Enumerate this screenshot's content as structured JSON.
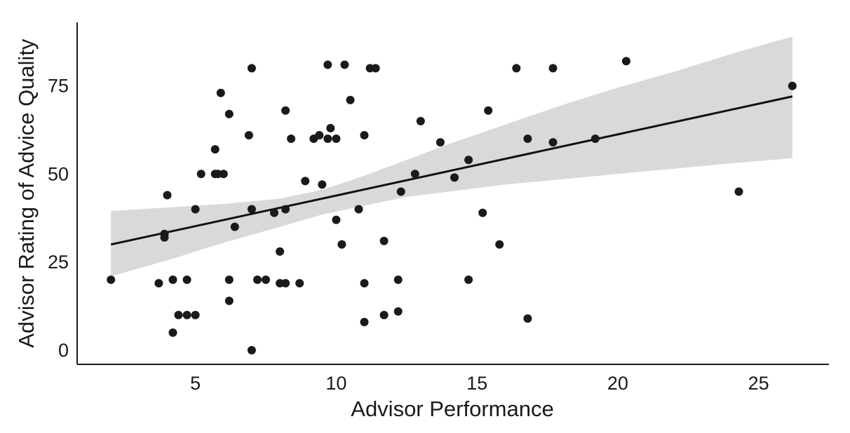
{
  "chart_data": {
    "type": "scatter",
    "title": "",
    "xlabel": "Advisor Performance",
    "ylabel": "Advisor Rating of Advice Quality",
    "xlim": [
      0.8,
      27.5
    ],
    "ylim": [
      -4,
      93
    ],
    "x_ticks": [
      5,
      10,
      15,
      20,
      25
    ],
    "y_ticks": [
      0,
      25,
      50,
      75
    ],
    "grid": false,
    "legend": "none",
    "colors": {
      "points": "#1a1a1a",
      "line": "#111111",
      "band": "#d9d9d9",
      "axis": "#1a1a1a"
    },
    "series": [
      {
        "points": [
          [
            2.0,
            20
          ],
          [
            3.7,
            19
          ],
          [
            3.9,
            33
          ],
          [
            3.9,
            32
          ],
          [
            4.0,
            44
          ],
          [
            4.2,
            20
          ],
          [
            4.2,
            5
          ],
          [
            4.4,
            10
          ],
          [
            4.7,
            10
          ],
          [
            4.7,
            20
          ],
          [
            5.0,
            10
          ],
          [
            5.0,
            40
          ],
          [
            5.2,
            50
          ],
          [
            5.7,
            57
          ],
          [
            5.7,
            50
          ],
          [
            5.8,
            50
          ],
          [
            5.9,
            73
          ],
          [
            6.0,
            50
          ],
          [
            6.2,
            67
          ],
          [
            6.2,
            20
          ],
          [
            6.2,
            14
          ],
          [
            6.4,
            35
          ],
          [
            6.9,
            61
          ],
          [
            7.0,
            80
          ],
          [
            7.0,
            40
          ],
          [
            7.0,
            0
          ],
          [
            7.2,
            20
          ],
          [
            7.5,
            20
          ],
          [
            7.8,
            39
          ],
          [
            8.0,
            28
          ],
          [
            8.0,
            19
          ],
          [
            8.2,
            19
          ],
          [
            8.2,
            68
          ],
          [
            8.2,
            40
          ],
          [
            8.4,
            60
          ],
          [
            8.7,
            19
          ],
          [
            8.9,
            48
          ],
          [
            9.2,
            60
          ],
          [
            9.4,
            61
          ],
          [
            9.5,
            47
          ],
          [
            9.7,
            81
          ],
          [
            9.7,
            60
          ],
          [
            9.8,
            63
          ],
          [
            10.0,
            60
          ],
          [
            10.0,
            37
          ],
          [
            10.2,
            30
          ],
          [
            10.3,
            81
          ],
          [
            10.5,
            71
          ],
          [
            10.8,
            40
          ],
          [
            11.0,
            61
          ],
          [
            11.0,
            19
          ],
          [
            11.0,
            8
          ],
          [
            11.2,
            80
          ],
          [
            11.4,
            80
          ],
          [
            11.7,
            31
          ],
          [
            11.7,
            10
          ],
          [
            12.2,
            11
          ],
          [
            12.2,
            20
          ],
          [
            12.3,
            45
          ],
          [
            12.8,
            50
          ],
          [
            13.0,
            65
          ],
          [
            13.7,
            59
          ],
          [
            14.2,
            49
          ],
          [
            14.7,
            54
          ],
          [
            14.7,
            20
          ],
          [
            15.2,
            39
          ],
          [
            15.4,
            68
          ],
          [
            15.8,
            30
          ],
          [
            16.4,
            80
          ],
          [
            16.8,
            60
          ],
          [
            16.8,
            9
          ],
          [
            17.7,
            80
          ],
          [
            17.7,
            59
          ],
          [
            19.2,
            60
          ],
          [
            20.3,
            82
          ],
          [
            24.3,
            45
          ],
          [
            26.2,
            75
          ]
        ]
      }
    ],
    "regression": {
      "x": [
        2.0,
        26.2
      ],
      "y": [
        30,
        72
      ],
      "ci_band": [
        {
          "x": 2.0,
          "lower": 21,
          "upper": 39.5
        },
        {
          "x": 4.0,
          "lower": 25.5,
          "upper": 40.5
        },
        {
          "x": 6.0,
          "lower": 30.5,
          "upper": 41.5
        },
        {
          "x": 8.0,
          "lower": 35,
          "upper": 43
        },
        {
          "x": 9.5,
          "lower": 38.5,
          "upper": 45.5
        },
        {
          "x": 11.0,
          "lower": 41,
          "upper": 49.5
        },
        {
          "x": 12.5,
          "lower": 43.5,
          "upper": 54
        },
        {
          "x": 14.0,
          "lower": 45,
          "upper": 58.5
        },
        {
          "x": 16.0,
          "lower": 47,
          "upper": 64
        },
        {
          "x": 18.0,
          "lower": 48.5,
          "upper": 69.5
        },
        {
          "x": 20.0,
          "lower": 50,
          "upper": 74.5
        },
        {
          "x": 22.0,
          "lower": 51.5,
          "upper": 79
        },
        {
          "x": 24.0,
          "lower": 53,
          "upper": 84
        },
        {
          "x": 26.2,
          "lower": 54.5,
          "upper": 89
        }
      ]
    }
  }
}
